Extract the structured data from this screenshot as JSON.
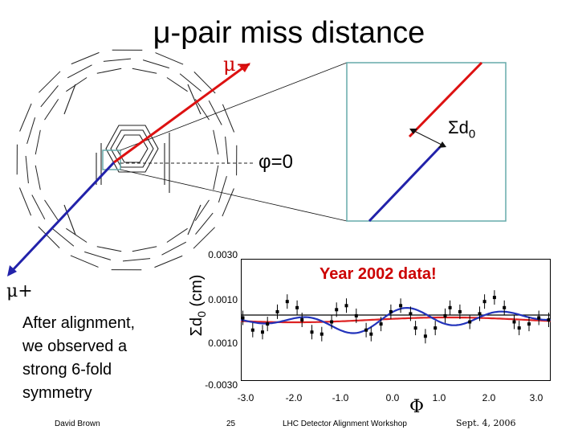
{
  "title": "μ-pair miss distance",
  "labels": {
    "mu_minus": "μ−",
    "sum_d0_symbol": "Σd",
    "sum_d0_sub": "0",
    "phi_zero": "φ=0",
    "mu_plus": "μ+",
    "data_label": "Year 2002 data!",
    "y_axis_symbol": "Σd",
    "y_axis_sub": "0",
    "y_axis_unit": " (cm)",
    "x_axis": "Φ"
  },
  "note": [
    "After alignment,",
    "we observed a",
    "strong 6-fold",
    "symmetry"
  ],
  "footer": {
    "author": "David Brown",
    "page": "25",
    "event": "LHC Detector Alignment Workshop",
    "date": "Sept. 4, 2006"
  },
  "colors": {
    "red_track": "#dd1111",
    "blue_track": "#2222aa",
    "box": "#66aaaa",
    "red_fit": "#dd2222",
    "blue_fit": "#2233bb"
  },
  "chart_data": {
    "type": "scatter",
    "y_tick_labels": [
      "0.0030",
      "0.0010",
      "0.0010",
      "-0.0030"
    ],
    "x_tick_labels": [
      "-3.0",
      "-2.0",
      "-1.0",
      "0.0",
      "1.0",
      "2.0",
      "3.0"
    ],
    "ylim": [
      -0.003,
      0.003
    ],
    "xlim": [
      -3.14,
      3.14
    ],
    "series": [
      {
        "kind": "data",
        "color": "#000000",
        "x": [
          -3.1,
          -2.9,
          -2.7,
          -2.6,
          -2.4,
          -2.2,
          -2.0,
          -1.9,
          -1.7,
          -1.5,
          -1.3,
          -1.2,
          -1.0,
          -0.8,
          -0.6,
          -0.5,
          -0.3,
          -0.1,
          0.1,
          0.3,
          0.4,
          0.6,
          0.8,
          1.0,
          1.1,
          1.3,
          1.5,
          1.7,
          1.8,
          2.0,
          2.2,
          2.4,
          2.5,
          2.7,
          2.9,
          3.1
        ],
        "y": [
          0.0001,
          -0.0005,
          -0.0006,
          -0.0002,
          0.0004,
          0.0009,
          0.0006,
          0.0,
          -0.0006,
          -0.0007,
          -0.0001,
          0.0005,
          0.0007,
          0.0002,
          -0.0005,
          -0.0007,
          -0.0002,
          0.0004,
          0.0007,
          0.0003,
          -0.0004,
          -0.0008,
          -0.0004,
          0.0002,
          0.0006,
          0.0004,
          -0.0001,
          0.0003,
          0.0009,
          0.0011,
          0.0006,
          -0.0001,
          -0.0004,
          -0.0002,
          0.0001,
          0.0
        ]
      }
    ]
  }
}
